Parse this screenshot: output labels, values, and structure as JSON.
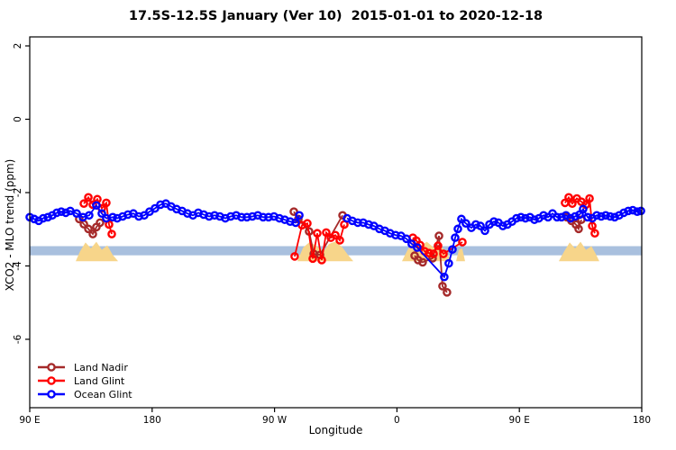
{
  "chart_data": {
    "type": "line",
    "title": "17.5S-12.5S January (Ver 10)  2015-01-01 to 2020-12-18",
    "xlabel": "Longitude",
    "ylabel": "XCO2 - MLO trend (ppm)",
    "x_axis_note": "x stored as degrees east of left edge (90E); axis wraps 90E-180-90W-0-90E-180 spanning 450 deg",
    "x_range_deg": [
      0,
      450
    ],
    "ylim": [
      -7.9,
      2.25
    ],
    "grid": "off",
    "legend_position": "bottom-left",
    "x_ticks": [
      {
        "t": 0,
        "label": "90 E"
      },
      {
        "t": 90,
        "label": "180"
      },
      {
        "t": 180,
        "label": "90 W"
      },
      {
        "t": 270,
        "label": "0"
      },
      {
        "t": 360,
        "label": "90 E"
      },
      {
        "t": 450,
        "label": "180"
      }
    ],
    "y_ticks": [
      {
        "v": 2,
        "label": "2"
      },
      {
        "v": 0,
        "label": "0"
      },
      {
        "v": -2,
        "label": "-2"
      },
      {
        "v": -4,
        "label": "-4"
      },
      {
        "v": -6,
        "label": "-6"
      }
    ],
    "band": {
      "name": "reference-band",
      "v_top": -3.46,
      "v_bottom": -3.71,
      "color": "#A9C0DE"
    },
    "land_profile_color": "#F7D58A",
    "land_profiles": [
      {
        "name": "australia-west-copy",
        "points": [
          [
            33.8,
            -3.87
          ],
          [
            37,
            -3.6
          ],
          [
            41,
            -3.36
          ],
          [
            45,
            -3.52
          ],
          [
            49,
            -3.34
          ],
          [
            53,
            -3.56
          ],
          [
            57,
            -3.44
          ],
          [
            61,
            -3.7
          ],
          [
            65,
            -3.87
          ]
        ]
      },
      {
        "name": "south-america",
        "points": [
          [
            196.8,
            -3.87
          ],
          [
            201,
            -3.5
          ],
          [
            206,
            -3.34
          ],
          [
            211,
            -3.46
          ],
          [
            216,
            -3.6
          ],
          [
            220,
            -3.4
          ],
          [
            225,
            -3.33
          ],
          [
            230,
            -3.5
          ],
          [
            234,
            -3.7
          ],
          [
            237.9,
            -3.87
          ]
        ]
      },
      {
        "name": "africa",
        "points": [
          [
            273.7,
            -3.87
          ],
          [
            278,
            -3.55
          ],
          [
            282,
            -3.36
          ],
          [
            287,
            -3.46
          ],
          [
            292,
            -3.34
          ],
          [
            297,
            -3.5
          ],
          [
            302,
            -3.44
          ],
          [
            306,
            -3.62
          ],
          [
            310.8,
            -3.87
          ]
        ]
      },
      {
        "name": "madagascar",
        "points": [
          [
            313.5,
            -3.87
          ],
          [
            315.5,
            -3.56
          ],
          [
            318,
            -3.52
          ],
          [
            320.1,
            -3.87
          ]
        ]
      },
      {
        "name": "australia-east-copy",
        "points": [
          [
            389.0,
            -3.87
          ],
          [
            393,
            -3.6
          ],
          [
            397,
            -3.36
          ],
          [
            401,
            -3.52
          ],
          [
            405,
            -3.34
          ],
          [
            409,
            -3.56
          ],
          [
            413,
            -3.46
          ],
          [
            416,
            -3.66
          ],
          [
            418.8,
            -3.87
          ]
        ]
      }
    ],
    "series": [
      {
        "name": "Land Nadir",
        "color": "#A52A2A",
        "segments": [
          [
            [
              36.4,
              -2.72
            ],
            [
              39.8,
              -2.86
            ],
            [
              43.1,
              -2.99
            ],
            [
              46.4,
              -3.13
            ],
            [
              49.0,
              -2.94
            ],
            [
              51.7,
              -2.82
            ]
          ],
          [
            [
              194.2,
              -2.52
            ],
            [
              197.5,
              -2.72
            ],
            [
              205.4,
              -3.06
            ],
            [
              208.8,
              -3.67
            ],
            [
              213.4,
              -3.7
            ],
            [
              230.0,
              -2.62
            ]
          ],
          [
            [
              283.0,
              -3.72
            ],
            [
              285.6,
              -3.84
            ],
            [
              288.9,
              -3.9
            ],
            [
              296.2,
              -3.79
            ],
            [
              300.9,
              -3.18
            ],
            [
              303.5,
              -4.55
            ],
            [
              306.8,
              -4.72
            ]
          ],
          [
            [
              394.9,
              -2.67
            ],
            [
              398.3,
              -2.77
            ],
            [
              401.6,
              -2.87
            ],
            [
              403.6,
              -2.99
            ],
            [
              405.6,
              -2.74
            ]
          ]
        ]
      },
      {
        "name": "Land Glint",
        "color": "#FF0000",
        "segments": [
          [
            [
              39.8,
              -2.3
            ],
            [
              43.1,
              -2.13
            ],
            [
              46.4,
              -2.33
            ],
            [
              49.7,
              -2.18
            ],
            [
              53.0,
              -2.43
            ],
            [
              56.3,
              -2.28
            ],
            [
              58.3,
              -2.87
            ],
            [
              60.3,
              -3.13
            ]
          ],
          [
            [
              194.8,
              -3.74
            ],
            [
              200.2,
              -2.89
            ],
            [
              204.1,
              -2.84
            ],
            [
              208.1,
              -3.8
            ],
            [
              211.4,
              -3.11
            ],
            [
              214.7,
              -3.84
            ],
            [
              218.0,
              -3.09
            ],
            [
              221.4,
              -3.23
            ],
            [
              224.7,
              -3.16
            ],
            [
              228.0,
              -3.3
            ],
            [
              231.3,
              -2.87
            ]
          ],
          [
            [
              281.7,
              -3.23
            ],
            [
              284.3,
              -3.31
            ],
            [
              287.0,
              -3.43
            ],
            [
              290.3,
              -3.6
            ],
            [
              293.6,
              -3.65
            ],
            [
              296.9,
              -3.67
            ],
            [
              300.2,
              -3.45
            ],
            [
              304.2,
              -3.67
            ],
            [
              318.1,
              -3.35
            ]
          ],
          [
            [
              393.6,
              -2.28
            ],
            [
              396.3,
              -2.13
            ],
            [
              398.9,
              -2.3
            ],
            [
              402.3,
              -2.16
            ],
            [
              405.6,
              -2.25
            ],
            [
              408.9,
              -2.33
            ],
            [
              411.6,
              -2.16
            ],
            [
              413.6,
              -2.91
            ],
            [
              415.5,
              -3.11
            ]
          ]
        ]
      },
      {
        "name": "Ocean Glint",
        "color": "#0000FF",
        "segments": [
          [
            [
              0,
              -2.67
            ],
            [
              3.3,
              -2.72
            ],
            [
              6.6,
              -2.77
            ],
            [
              9.9,
              -2.7
            ],
            [
              13.3,
              -2.67
            ],
            [
              16.6,
              -2.62
            ],
            [
              19.9,
              -2.55
            ],
            [
              23.2,
              -2.52
            ],
            [
              26.5,
              -2.55
            ],
            [
              29.8,
              -2.5
            ],
            [
              34.5,
              -2.57
            ],
            [
              39.1,
              -2.67
            ],
            [
              43.7,
              -2.62
            ],
            [
              49.0,
              -2.35
            ],
            [
              53.0,
              -2.57
            ],
            [
              56.3,
              -2.7
            ],
            [
              61.0,
              -2.67
            ],
            [
              64.3,
              -2.7
            ],
            [
              68.3,
              -2.65
            ],
            [
              72.2,
              -2.6
            ],
            [
              76.2,
              -2.57
            ],
            [
              80.2,
              -2.65
            ],
            [
              84.2,
              -2.62
            ],
            [
              88.1,
              -2.52
            ],
            [
              92.1,
              -2.43
            ],
            [
              96.1,
              -2.33
            ],
            [
              100.1,
              -2.3
            ],
            [
              104.0,
              -2.38
            ],
            [
              108.0,
              -2.45
            ],
            [
              112.0,
              -2.5
            ],
            [
              116.0,
              -2.57
            ],
            [
              120.0,
              -2.62
            ],
            [
              123.9,
              -2.55
            ],
            [
              127.9,
              -2.6
            ],
            [
              131.9,
              -2.65
            ],
            [
              135.9,
              -2.62
            ],
            [
              139.8,
              -2.65
            ],
            [
              143.8,
              -2.7
            ],
            [
              147.8,
              -2.65
            ],
            [
              151.8,
              -2.62
            ],
            [
              155.7,
              -2.67
            ],
            [
              159.7,
              -2.67
            ],
            [
              163.7,
              -2.65
            ],
            [
              167.7,
              -2.62
            ],
            [
              171.6,
              -2.67
            ],
            [
              175.6,
              -2.67
            ],
            [
              179.6,
              -2.65
            ],
            [
              183.6,
              -2.7
            ],
            [
              187.5,
              -2.74
            ],
            [
              191.5,
              -2.79
            ],
            [
              195.5,
              -2.82
            ],
            [
              198.2,
              -2.62
            ]
          ],
          [
            [
              233.3,
              -2.7
            ],
            [
              237.2,
              -2.77
            ],
            [
              241.2,
              -2.82
            ],
            [
              245.2,
              -2.82
            ],
            [
              249.2,
              -2.87
            ],
            [
              253.1,
              -2.91
            ],
            [
              257.1,
              -2.99
            ],
            [
              261.1,
              -3.04
            ],
            [
              265.0,
              -3.11
            ],
            [
              269.0,
              -3.16
            ],
            [
              273.0,
              -3.18
            ],
            [
              277.0,
              -3.26
            ],
            [
              280.9,
              -3.4
            ],
            [
              284.9,
              -3.5
            ],
            [
              304.8,
              -4.3
            ],
            [
              308.1,
              -3.93
            ],
            [
              310.8,
              -3.55
            ],
            [
              312.8,
              -3.23
            ],
            [
              314.8,
              -2.99
            ],
            [
              317.4,
              -2.72
            ],
            [
              320.7,
              -2.84
            ],
            [
              324.7,
              -2.96
            ],
            [
              328.0,
              -2.87
            ],
            [
              331.4,
              -2.91
            ],
            [
              334.7,
              -3.04
            ],
            [
              338.0,
              -2.87
            ],
            [
              341.3,
              -2.79
            ],
            [
              344.6,
              -2.82
            ],
            [
              347.9,
              -2.91
            ],
            [
              351.2,
              -2.87
            ],
            [
              354.6,
              -2.79
            ],
            [
              357.9,
              -2.7
            ],
            [
              361.2,
              -2.67
            ],
            [
              364.5,
              -2.7
            ],
            [
              367.8,
              -2.67
            ],
            [
              371.1,
              -2.74
            ],
            [
              374.4,
              -2.7
            ],
            [
              377.8,
              -2.62
            ],
            [
              381.1,
              -2.67
            ],
            [
              384.4,
              -2.57
            ],
            [
              387.7,
              -2.67
            ],
            [
              391.0,
              -2.67
            ],
            [
              394.3,
              -2.62
            ],
            [
              397.6,
              -2.7
            ],
            [
              401.0,
              -2.65
            ],
            [
              404.3,
              -2.6
            ],
            [
              406.9,
              -2.45
            ],
            [
              410.2,
              -2.67
            ],
            [
              413.6,
              -2.7
            ],
            [
              416.9,
              -2.62
            ],
            [
              420.2,
              -2.65
            ],
            [
              423.5,
              -2.62
            ],
            [
              426.8,
              -2.65
            ],
            [
              430.1,
              -2.67
            ],
            [
              433.4,
              -2.62
            ],
            [
              436.8,
              -2.55
            ],
            [
              440.1,
              -2.5
            ],
            [
              443.4,
              -2.48
            ],
            [
              446.7,
              -2.52
            ],
            [
              449.4,
              -2.5
            ]
          ]
        ]
      }
    ],
    "legend": [
      {
        "label": "Land Nadir",
        "color": "#A52A2A"
      },
      {
        "label": "Land Glint",
        "color": "#FF0000"
      },
      {
        "label": "Ocean Glint",
        "color": "#0000FF"
      }
    ]
  }
}
